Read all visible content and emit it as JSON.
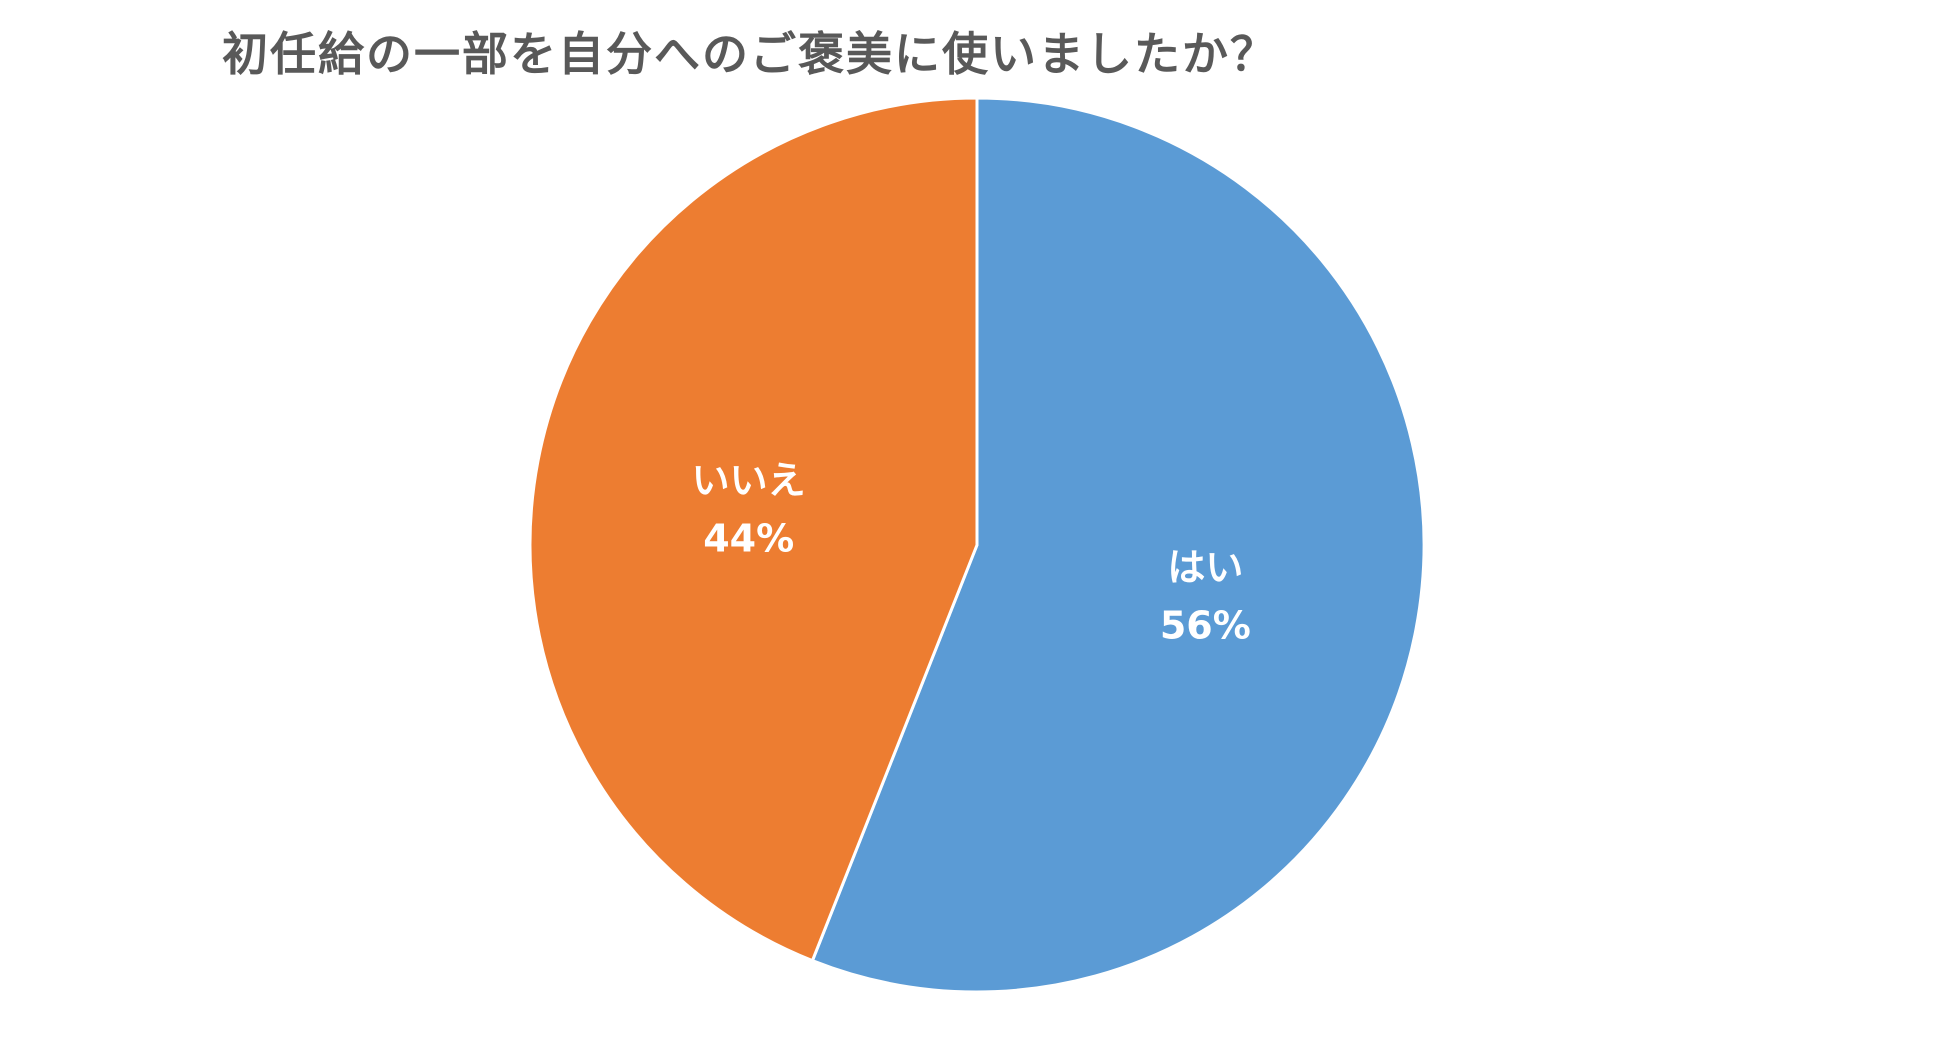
{
  "chart_data": {
    "type": "pie",
    "title": "初任給の一部を自分へのご褒美に使いましたか？",
    "categories": [
      "はい",
      "いいえ"
    ],
    "values": [
      56,
      44
    ],
    "value_labels": [
      "56%",
      "44%"
    ],
    "colors": [
      "#5B9BD5",
      "#ED7D31"
    ],
    "start_angle": "12 o'clock",
    "direction": "clockwise",
    "legend": "none"
  }
}
